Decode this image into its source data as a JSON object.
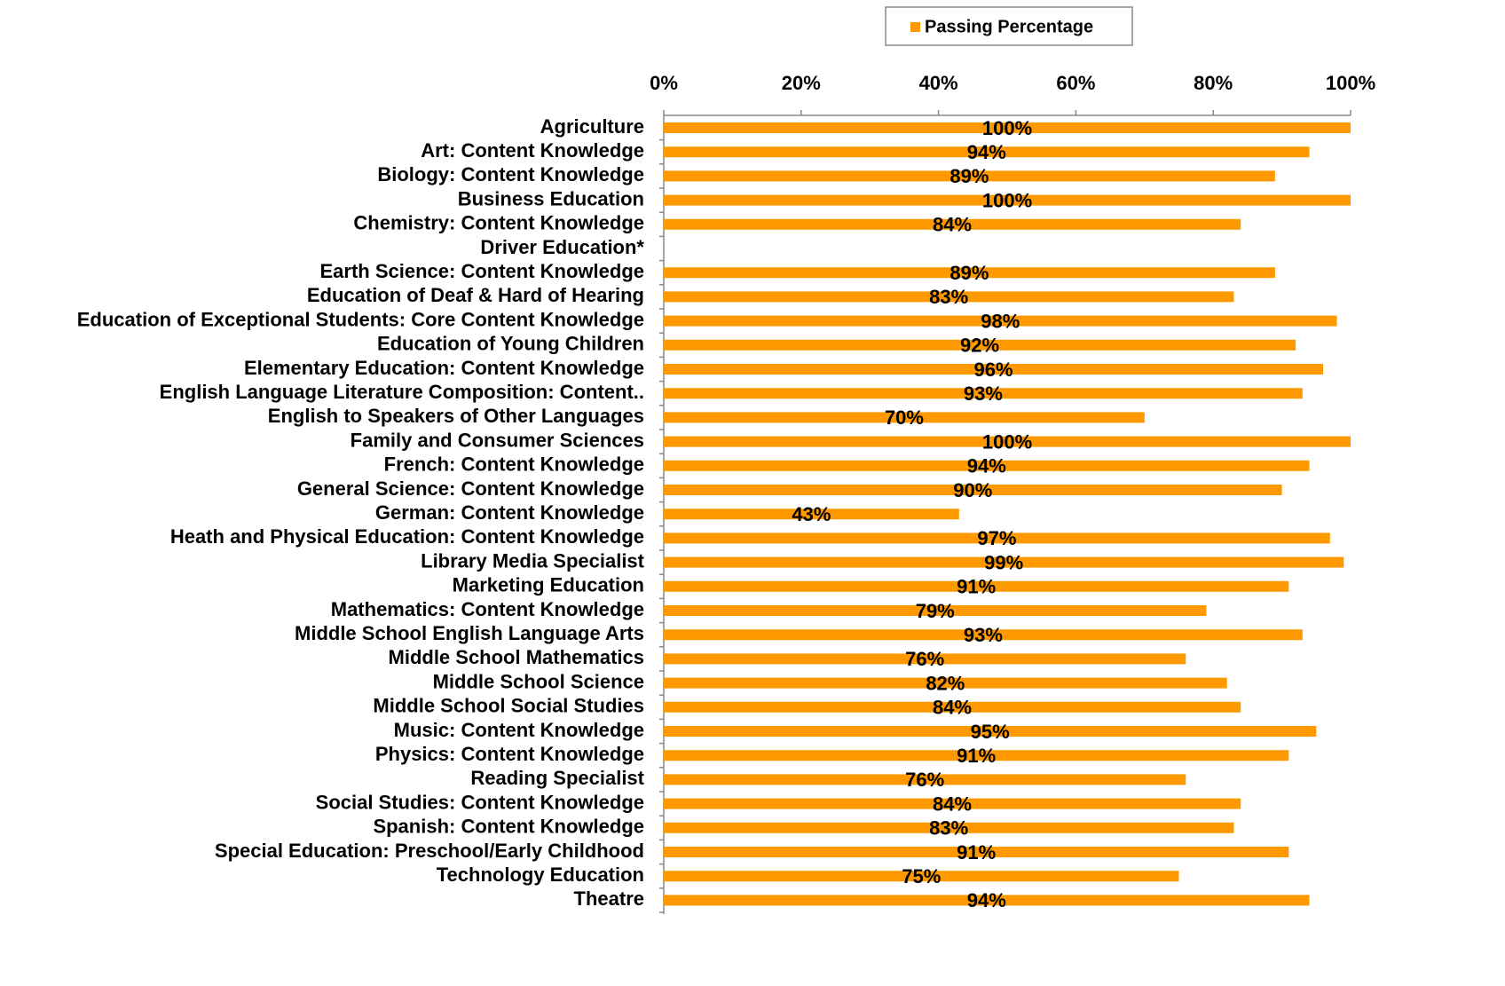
{
  "chart_data": {
    "type": "hbar",
    "categories": [
      "Agriculture",
      "Art: Content Knowledge",
      "Biology: Content Knowledge",
      "Business Education",
      "Chemistry: Content Knowledge",
      "Driver Education*",
      "Earth Science: Content Knowledge",
      "Education of Deaf & Hard of Hearing",
      "Education of Exceptional Students: Core Content Knowledge",
      "Education of Young Children",
      "Elementary Education: Content Knowledge",
      "English Language Literature Composition: Content..",
      "English to Speakers of Other Languages",
      "Family and Consumer Sciences",
      "French: Content Knowledge",
      "General Science: Content Knowledge",
      "German: Content Knowledge",
      "Heath and Physical Education: Content Knowledge",
      "Library Media Specialist",
      "Marketing Education",
      "Mathematics: Content Knowledge",
      "Middle School English Language Arts",
      "Middle School Mathematics",
      "Middle School Science",
      "Middle School Social Studies",
      "Music: Content Knowledge",
      "Physics: Content Knowledge",
      "Reading Specialist",
      "Social Studies: Content Knowledge",
      "Spanish: Content Knowledge",
      "Special Education: Preschool/Early Childhood",
      "Technology Education",
      "Theatre"
    ],
    "series": [
      {
        "name": "Passing Percentage",
        "color": "#ff9900",
        "values": [
          100,
          94,
          89,
          100,
          84,
          null,
          89,
          83,
          98,
          92,
          96,
          93,
          70,
          100,
          94,
          90,
          43,
          97,
          99,
          91,
          79,
          93,
          76,
          82,
          84,
          95,
          91,
          76,
          84,
          83,
          91,
          75,
          94
        ],
        "value_labels": [
          "100%",
          "94%",
          "89%",
          "100%",
          "84%",
          null,
          "89%",
          "83%",
          "98%",
          "92%",
          "96%",
          "93%",
          "70%",
          "100%",
          "94%",
          "90%",
          "43%",
          "97%",
          "99%",
          "91%",
          "79%",
          "93%",
          "76%",
          "82%",
          "84%",
          "95%",
          "91%",
          "76%",
          "84%",
          "83%",
          "91%",
          "75%",
          "94%"
        ]
      }
    ],
    "xlim": [
      0,
      100
    ],
    "xticks": [
      {
        "value": 0,
        "label": "0%"
      },
      {
        "value": 20,
        "label": "20%"
      },
      {
        "value": 40,
        "label": "40%"
      },
      {
        "value": 60,
        "label": "60%"
      },
      {
        "value": 80,
        "label": "80%"
      },
      {
        "value": 100,
        "label": "100%"
      }
    ],
    "legend": "top"
  }
}
